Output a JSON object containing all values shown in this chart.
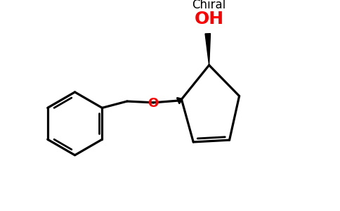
{
  "background_color": "#ffffff",
  "chiral_label": "Chiral",
  "oh_label": "OH",
  "o_label": "O",
  "chiral_color": "#000000",
  "oh_color": "#ff0000",
  "o_color": "#ff0000",
  "bond_color": "#000000",
  "bond_lw": 2.3,
  "figsize": [
    4.84,
    3.0
  ],
  "dpi": 100
}
